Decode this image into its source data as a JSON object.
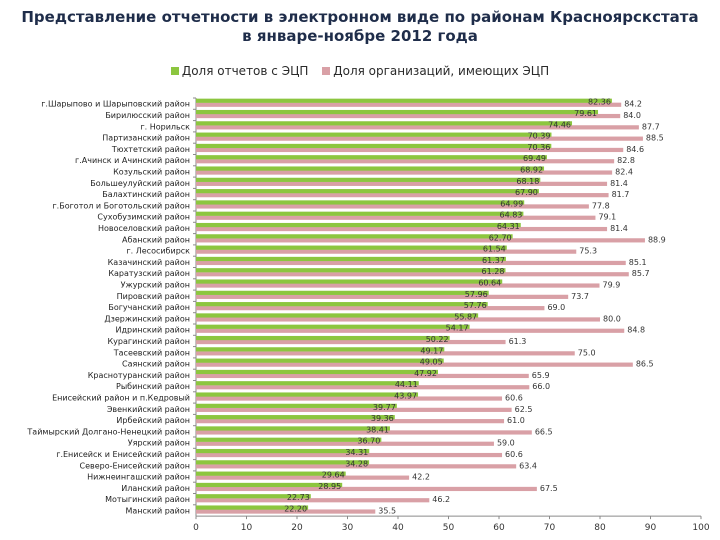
{
  "chart_data": {
    "type": "bar",
    "orientation": "horizontal",
    "title": "Представление отчетности в электронном виде по районам Красноярскстата в январе-ноябре 2012 года",
    "title_line1": "Представление отчетности в электронном виде по районам Красноярскстата",
    "title_line2": "в январе-ноябре 2012 года",
    "xlim": [
      0,
      100
    ],
    "xticks": [
      0,
      10,
      20,
      30,
      40,
      50,
      60,
      70,
      80,
      90,
      100
    ],
    "legend_position": "top",
    "categories": [
      "г.Шарыпово и Шарыповский район",
      "Бирилюсский район",
      "г. Норильск",
      "Партизанский район",
      "Тюхтетский район",
      "г.Ачинск и Ачинский район",
      "Козульский район",
      "Большеулуйский район",
      "Балахтинский район",
      "г.Боготол и Боготольский район",
      "Сухобузимский район",
      "Новоселовский район",
      "Абанский район",
      "г. Лесосибирск",
      "Казачинский район",
      "Каратузский район",
      "Ужурский район",
      "Пировский район",
      "Богучанский район",
      "Дзержинский район",
      "Идринский район",
      "Курагинский район",
      "Тасеевский район",
      "Саянский район",
      "Краснотуранский район",
      "Рыбинский район",
      "Енисейский район и п.Кедровый",
      "Эвенкийский район",
      "Ирбейский район",
      "Таймырский Долгано-Ненецкий район",
      "Уярский район",
      "г.Енисейск и Енисейский район",
      "Северо-Енисейский район",
      "Нижнеингашский район",
      "Иланский район",
      "Мотыгинский район",
      "Манский район"
    ],
    "series": [
      {
        "name": "Доля отчетов с ЭЦП",
        "color": "#8cc63f",
        "values": [
          82.36,
          79.61,
          74.46,
          70.39,
          70.36,
          69.49,
          68.92,
          68.18,
          67.9,
          64.99,
          64.83,
          64.31,
          62.7,
          61.54,
          61.37,
          61.28,
          60.64,
          57.96,
          57.76,
          55.87,
          54.17,
          50.22,
          49.17,
          49.05,
          47.92,
          44.11,
          43.97,
          39.77,
          39.36,
          38.41,
          36.7,
          34.31,
          34.28,
          29.64,
          28.95,
          22.73,
          22.2
        ],
        "labels": [
          "82.36",
          "79.61",
          "74.46",
          "70.39",
          "70.36",
          "69.49",
          "68.92",
          "68.18",
          "67.90",
          "64.99",
          "64.83",
          "64.31",
          "62.70",
          "61.54",
          "61.37",
          "61.28",
          "60.64",
          "57.96",
          "57.76",
          "55.87",
          "54.17",
          "50.22",
          "49.17",
          "49.05",
          "47.92",
          "44.11",
          "43.97",
          "39.77",
          "39.36",
          "38.41",
          "36.70",
          "34.31",
          "34.28",
          "29.64",
          "28.95",
          "22.73",
          "22.20"
        ]
      },
      {
        "name": "Доля организаций, имеющих ЭЦП",
        "color": "#d9a0a6",
        "values": [
          84.2,
          84.0,
          87.7,
          88.5,
          84.6,
          82.8,
          82.4,
          81.4,
          81.7,
          77.8,
          79.1,
          81.4,
          88.9,
          75.3,
          85.1,
          85.7,
          79.9,
          73.7,
          69.0,
          80.0,
          84.8,
          61.3,
          75.0,
          86.5,
          65.9,
          66.0,
          60.6,
          62.5,
          61.0,
          66.5,
          59.0,
          60.6,
          63.4,
          42.2,
          67.5,
          46.2,
          35.5
        ],
        "labels": [
          "84.2",
          "84.0",
          "87.7",
          "88.5",
          "84.6",
          "82.8",
          "82.4",
          "81.4",
          "81.7",
          "77.8",
          "79.1",
          "81.4",
          "88.9",
          "75.3",
          "85.1",
          "85.7",
          "79.9",
          "73.7",
          "69.0",
          "80.0",
          "84.8",
          "61.3",
          "75.0",
          "86.5",
          "65.9",
          "66.0",
          "60.6",
          "62.5",
          "61.0",
          "66.5",
          "59.0",
          "60.6",
          "63.4",
          "42.2",
          "67.5",
          "46.2",
          "35.5"
        ]
      }
    ]
  }
}
